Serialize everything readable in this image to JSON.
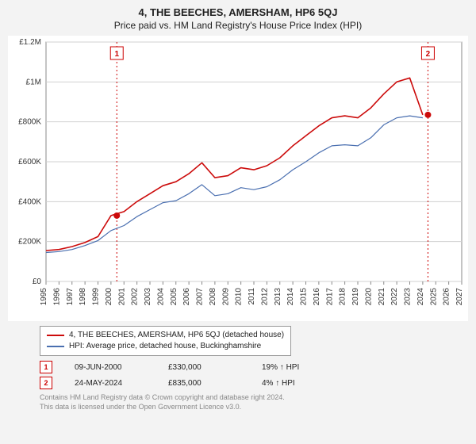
{
  "title": "4, THE BEECHES, AMERSHAM, HP6 5QJ",
  "subtitle": "Price paid vs. HM Land Registry's House Price Index (HPI)",
  "chart": {
    "type": "line",
    "background_color": "#ffffff",
    "grid_color": "#d0d0d0",
    "axis_color": "#888888",
    "marker_line_color": "#cc0000",
    "marker_line_dash": "2,3",
    "xlim": [
      1995,
      2027
    ],
    "ylim": [
      0,
      1200000
    ],
    "ytick_step": 200000,
    "ytick_labels": [
      "£0",
      "£200K",
      "£400K",
      "£600K",
      "£800K",
      "£1M",
      "£1.2M"
    ],
    "xticks": [
      1995,
      1996,
      1997,
      1998,
      1999,
      2000,
      2001,
      2002,
      2003,
      2004,
      2005,
      2006,
      2007,
      2008,
      2009,
      2010,
      2011,
      2012,
      2013,
      2014,
      2015,
      2016,
      2017,
      2018,
      2019,
      2020,
      2021,
      2022,
      2023,
      2024,
      2025,
      2026,
      2027
    ],
    "series": [
      {
        "name": "property",
        "label": "4, THE BEECHES, AMERSHAM, HP6 5QJ (detached house)",
        "color": "#cc0b0b",
        "line_width": 1.6,
        "points": [
          [
            1995,
            155000
          ],
          [
            1996,
            160000
          ],
          [
            1997,
            175000
          ],
          [
            1998,
            195000
          ],
          [
            1999,
            225000
          ],
          [
            2000,
            330000
          ],
          [
            2001,
            350000
          ],
          [
            2002,
            400000
          ],
          [
            2003,
            440000
          ],
          [
            2004,
            480000
          ],
          [
            2005,
            500000
          ],
          [
            2006,
            540000
          ],
          [
            2007,
            595000
          ],
          [
            2008,
            520000
          ],
          [
            2009,
            530000
          ],
          [
            2010,
            570000
          ],
          [
            2011,
            560000
          ],
          [
            2012,
            580000
          ],
          [
            2013,
            620000
          ],
          [
            2014,
            680000
          ],
          [
            2015,
            730000
          ],
          [
            2016,
            780000
          ],
          [
            2017,
            820000
          ],
          [
            2018,
            830000
          ],
          [
            2019,
            820000
          ],
          [
            2020,
            870000
          ],
          [
            2021,
            940000
          ],
          [
            2022,
            1000000
          ],
          [
            2023,
            1020000
          ],
          [
            2024,
            835000
          ]
        ]
      },
      {
        "name": "hpi",
        "label": "HPI: Average price, detached house, Buckinghamshire",
        "color": "#4a6fb0",
        "line_width": 1.2,
        "points": [
          [
            1995,
            145000
          ],
          [
            1996,
            150000
          ],
          [
            1997,
            160000
          ],
          [
            1998,
            180000
          ],
          [
            1999,
            205000
          ],
          [
            2000,
            255000
          ],
          [
            2001,
            280000
          ],
          [
            2002,
            325000
          ],
          [
            2003,
            360000
          ],
          [
            2004,
            395000
          ],
          [
            2005,
            405000
          ],
          [
            2006,
            440000
          ],
          [
            2007,
            485000
          ],
          [
            2008,
            430000
          ],
          [
            2009,
            440000
          ],
          [
            2010,
            470000
          ],
          [
            2011,
            460000
          ],
          [
            2012,
            475000
          ],
          [
            2013,
            510000
          ],
          [
            2014,
            560000
          ],
          [
            2015,
            600000
          ],
          [
            2016,
            645000
          ],
          [
            2017,
            680000
          ],
          [
            2018,
            685000
          ],
          [
            2019,
            680000
          ],
          [
            2020,
            720000
          ],
          [
            2021,
            785000
          ],
          [
            2022,
            820000
          ],
          [
            2023,
            830000
          ],
          [
            2024,
            820000
          ]
        ]
      }
    ],
    "markers": [
      {
        "id": "1",
        "x": 2000.45,
        "dot_y": 330000,
        "dot_color": "#cc0b0b"
      },
      {
        "id": "2",
        "x": 2024.4,
        "dot_y": 835000,
        "dot_color": "#cc0b0b"
      }
    ],
    "label_fontsize": 10,
    "tick_fontsize": 10
  },
  "legend": {
    "items": [
      {
        "color": "#cc0b0b",
        "label": "4, THE BEECHES, AMERSHAM, HP6 5QJ (detached house)"
      },
      {
        "color": "#4a6fb0",
        "label": "HPI: Average price, detached house, Buckinghamshire"
      }
    ]
  },
  "marker_rows": [
    {
      "badge": "1",
      "date": "09-JUN-2000",
      "price": "£330,000",
      "delta": "19% ↑ HPI"
    },
    {
      "badge": "2",
      "date": "24-MAY-2024",
      "price": "£835,000",
      "delta": "4% ↑ HPI"
    }
  ],
  "footer_line1": "Contains HM Land Registry data © Crown copyright and database right 2024.",
  "footer_line2": "This data is licensed under the Open Government Licence v3.0."
}
